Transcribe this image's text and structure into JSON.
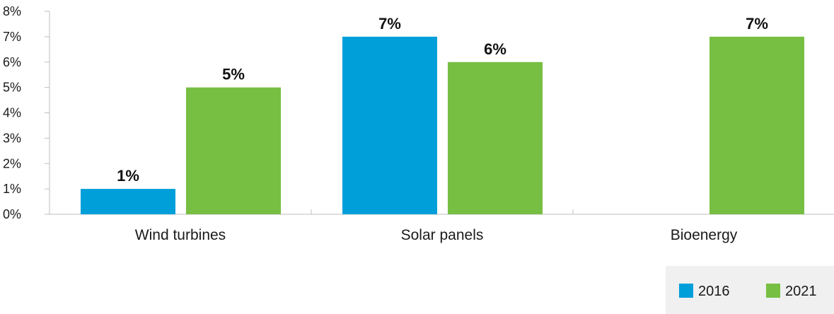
{
  "chart_data": {
    "type": "bar",
    "categories": [
      "Wind turbines",
      "Solar panels",
      "Bioenergy"
    ],
    "series": [
      {
        "name": "2016",
        "values": [
          1,
          7,
          0
        ],
        "color": "#009fda"
      },
      {
        "name": "2021",
        "values": [
          5,
          6,
          7
        ],
        "color": "#77bf43"
      }
    ],
    "data_labels": [
      [
        "1%",
        "7%",
        ""
      ],
      [
        "5%",
        "6%",
        "7%"
      ]
    ],
    "ylim": [
      0,
      8
    ],
    "yticks": [
      0,
      1,
      2,
      3,
      4,
      5,
      6,
      7,
      8
    ],
    "ytick_labels": [
      "0%",
      "1%",
      "2%",
      "3%",
      "4%",
      "5%",
      "6%",
      "7%",
      "8%"
    ],
    "grid": false,
    "legend_position": "bottom-right",
    "legend_background": "#f0f0f0",
    "axis_color": "#bfbfbf"
  }
}
